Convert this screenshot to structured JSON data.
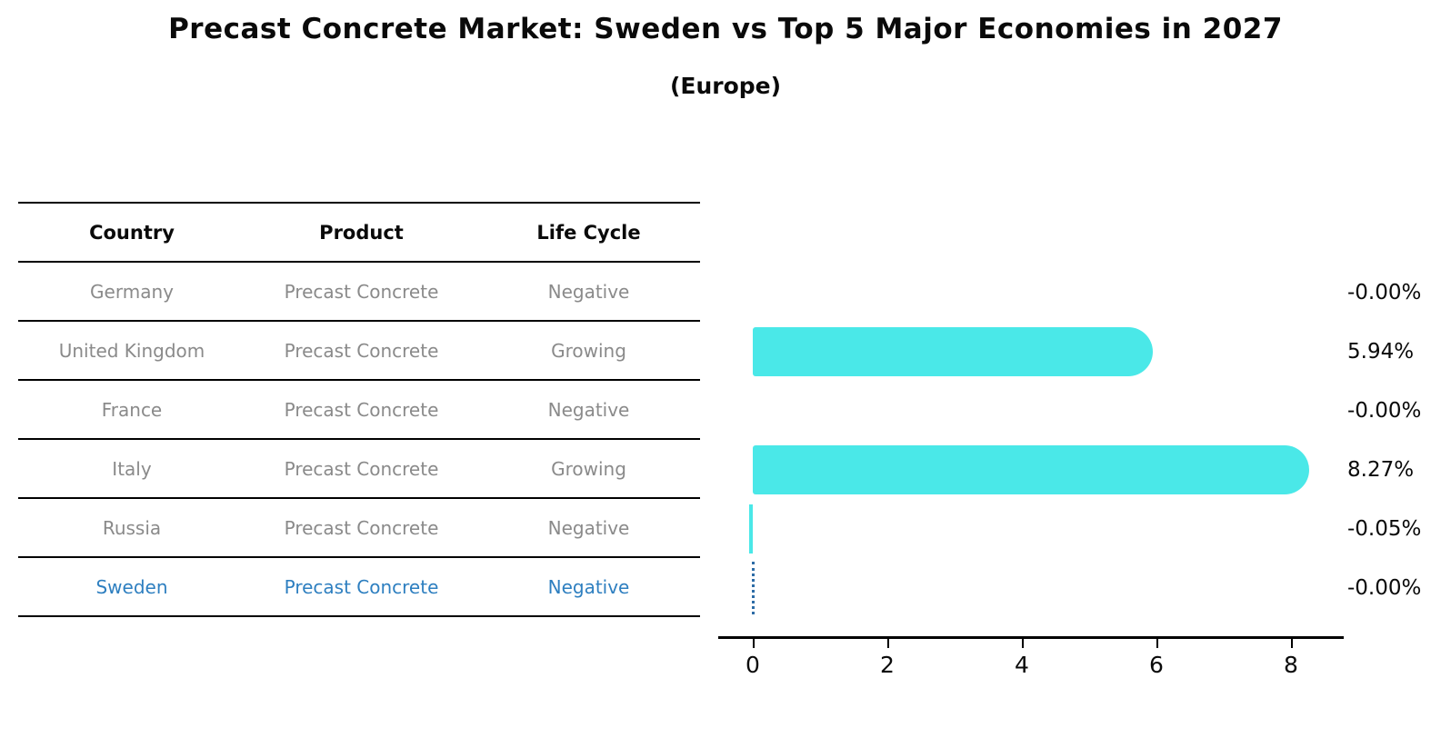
{
  "title": "Precast Concrete Market: Sweden vs Top 5 Major Economies in 2027",
  "subtitle": "(Europe)",
  "table": {
    "headers": [
      "Country",
      "Product",
      "Life Cycle"
    ],
    "rows": [
      {
        "country": "Germany",
        "product": "Precast Concrete",
        "life_cycle": "Negative",
        "highlight": false
      },
      {
        "country": "United Kingdom",
        "product": "Precast Concrete",
        "life_cycle": "Growing",
        "highlight": false
      },
      {
        "country": "France",
        "product": "Precast Concrete",
        "life_cycle": "Negative",
        "highlight": false
      },
      {
        "country": "Italy",
        "product": "Precast Concrete",
        "life_cycle": "Growing",
        "highlight": false
      },
      {
        "country": "Russia",
        "product": "Precast Concrete",
        "life_cycle": "Negative",
        "highlight": false
      },
      {
        "country": "Sweden",
        "product": "Precast Concrete",
        "life_cycle": "Negative",
        "highlight": true
      }
    ]
  },
  "chart_data": {
    "type": "bar",
    "orientation": "horizontal",
    "categories": [
      "Germany",
      "United Kingdom",
      "France",
      "Italy",
      "Russia",
      "Sweden"
    ],
    "values": [
      -0.0,
      5.94,
      -0.0,
      8.27,
      -0.05,
      -0.0
    ],
    "value_labels": [
      "-0.00%",
      "5.94%",
      "-0.00%",
      "8.27%",
      "-0.05%",
      "-0.00%"
    ],
    "x_ticks": [
      "0",
      "2",
      "4",
      "6",
      "8"
    ],
    "xlim": [
      -0.3,
      8.8
    ],
    "grid": false,
    "legend": "none",
    "bar_color": "#4ae8e8",
    "highlight_text_color": "#2e7fc0",
    "highlight_outline_color": "#2d6ca6",
    "highlight_index": 5,
    "highlight_bar_style": "dotted-outline-at-zero"
  }
}
